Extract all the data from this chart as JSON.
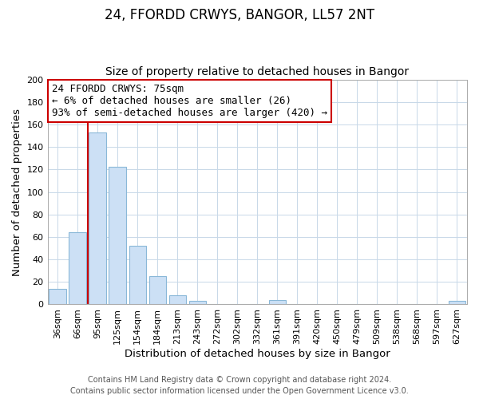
{
  "title": "24, FFORDD CRWYS, BANGOR, LL57 2NT",
  "subtitle": "Size of property relative to detached houses in Bangor",
  "xlabel": "Distribution of detached houses by size in Bangor",
  "ylabel": "Number of detached properties",
  "bar_labels": [
    "36sqm",
    "66sqm",
    "95sqm",
    "125sqm",
    "154sqm",
    "184sqm",
    "213sqm",
    "243sqm",
    "272sqm",
    "302sqm",
    "332sqm",
    "361sqm",
    "391sqm",
    "420sqm",
    "450sqm",
    "479sqm",
    "509sqm",
    "538sqm",
    "568sqm",
    "597sqm",
    "627sqm"
  ],
  "bar_values": [
    14,
    64,
    153,
    122,
    52,
    25,
    8,
    3,
    0,
    0,
    0,
    4,
    0,
    0,
    0,
    0,
    0,
    0,
    0,
    0,
    3
  ],
  "bar_color": "#cce0f5",
  "bar_edge_color": "#8ab8d8",
  "vline_color": "#cc0000",
  "vline_x": 1.5,
  "ylim": [
    0,
    200
  ],
  "yticks": [
    0,
    20,
    40,
    60,
    80,
    100,
    120,
    140,
    160,
    180,
    200
  ],
  "annotation_line1": "24 FFORDD CRWYS: 75sqm",
  "annotation_line2": "← 6% of detached houses are smaller (26)",
  "annotation_line3": "93% of semi-detached houses are larger (420) →",
  "annotation_box_color": "#ffffff",
  "annotation_box_edge_color": "#cc0000",
  "footer_line1": "Contains HM Land Registry data © Crown copyright and database right 2024.",
  "footer_line2": "Contains public sector information licensed under the Open Government Licence v3.0.",
  "title_fontsize": 12,
  "subtitle_fontsize": 10,
  "axis_label_fontsize": 9.5,
  "tick_fontsize": 8,
  "annotation_fontsize": 9,
  "footer_fontsize": 7
}
